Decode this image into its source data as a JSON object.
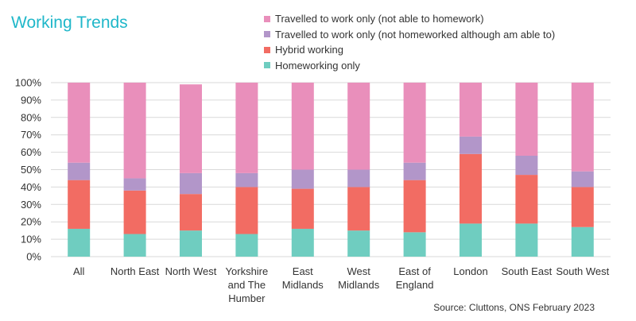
{
  "title": "Working Trends",
  "source": "Source: Cluttons, ONS February 2023",
  "colors": {
    "homeworking_only": "#6fcdc0",
    "hybrid_working": "#f26c63",
    "travelled_able": "#b296c9",
    "travelled_not_able": "#e98fbb",
    "grid": "#d9d9d9",
    "axis_text": "#333333",
    "title": "#1fb7c9"
  },
  "legend": [
    {
      "label": "Travelled to work only (not able to homework)",
      "color_key": "travelled_not_able"
    },
    {
      "label": "Travelled to work only (not homeworked although am able to)",
      "color_key": "travelled_able"
    },
    {
      "label": "Hybrid working",
      "color_key": "hybrid_working"
    },
    {
      "label": "Homeworking only",
      "color_key": "homeworking_only"
    }
  ],
  "chart_data": {
    "type": "bar",
    "stacked": true,
    "categories": [
      [
        "All"
      ],
      [
        "North East"
      ],
      [
        "North West"
      ],
      [
        "Yorkshire",
        "and The",
        "Humber"
      ],
      [
        "East",
        "Midlands"
      ],
      [
        "West",
        "Midlands"
      ],
      [
        "East of",
        "England"
      ],
      [
        "London"
      ],
      [
        "South East"
      ],
      [
        "South West"
      ]
    ],
    "series": [
      {
        "name": "Homeworking only",
        "color_key": "homeworking_only",
        "values": [
          16,
          13,
          15,
          13,
          16,
          15,
          14,
          19,
          19,
          17
        ]
      },
      {
        "name": "Hybrid working",
        "color_key": "hybrid_working",
        "values": [
          28,
          25,
          21,
          27,
          23,
          25,
          30,
          40,
          28,
          23
        ]
      },
      {
        "name": "Travelled to work only (not homeworked although am able to)",
        "color_key": "travelled_able",
        "values": [
          10,
          7,
          12,
          8,
          11,
          10,
          10,
          10,
          11,
          9
        ]
      },
      {
        "name": "Travelled to work only (not able to homework)",
        "color_key": "travelled_not_able",
        "values": [
          46,
          55,
          51,
          52,
          50,
          50,
          46,
          31,
          42,
          51
        ]
      }
    ],
    "yticks": [
      "0%",
      "10%",
      "20%",
      "30%",
      "40%",
      "50%",
      "60%",
      "70%",
      "80%",
      "90%",
      "100%"
    ],
    "ylim": [
      0,
      100
    ],
    "grid": true,
    "legend_position": "top-right"
  }
}
